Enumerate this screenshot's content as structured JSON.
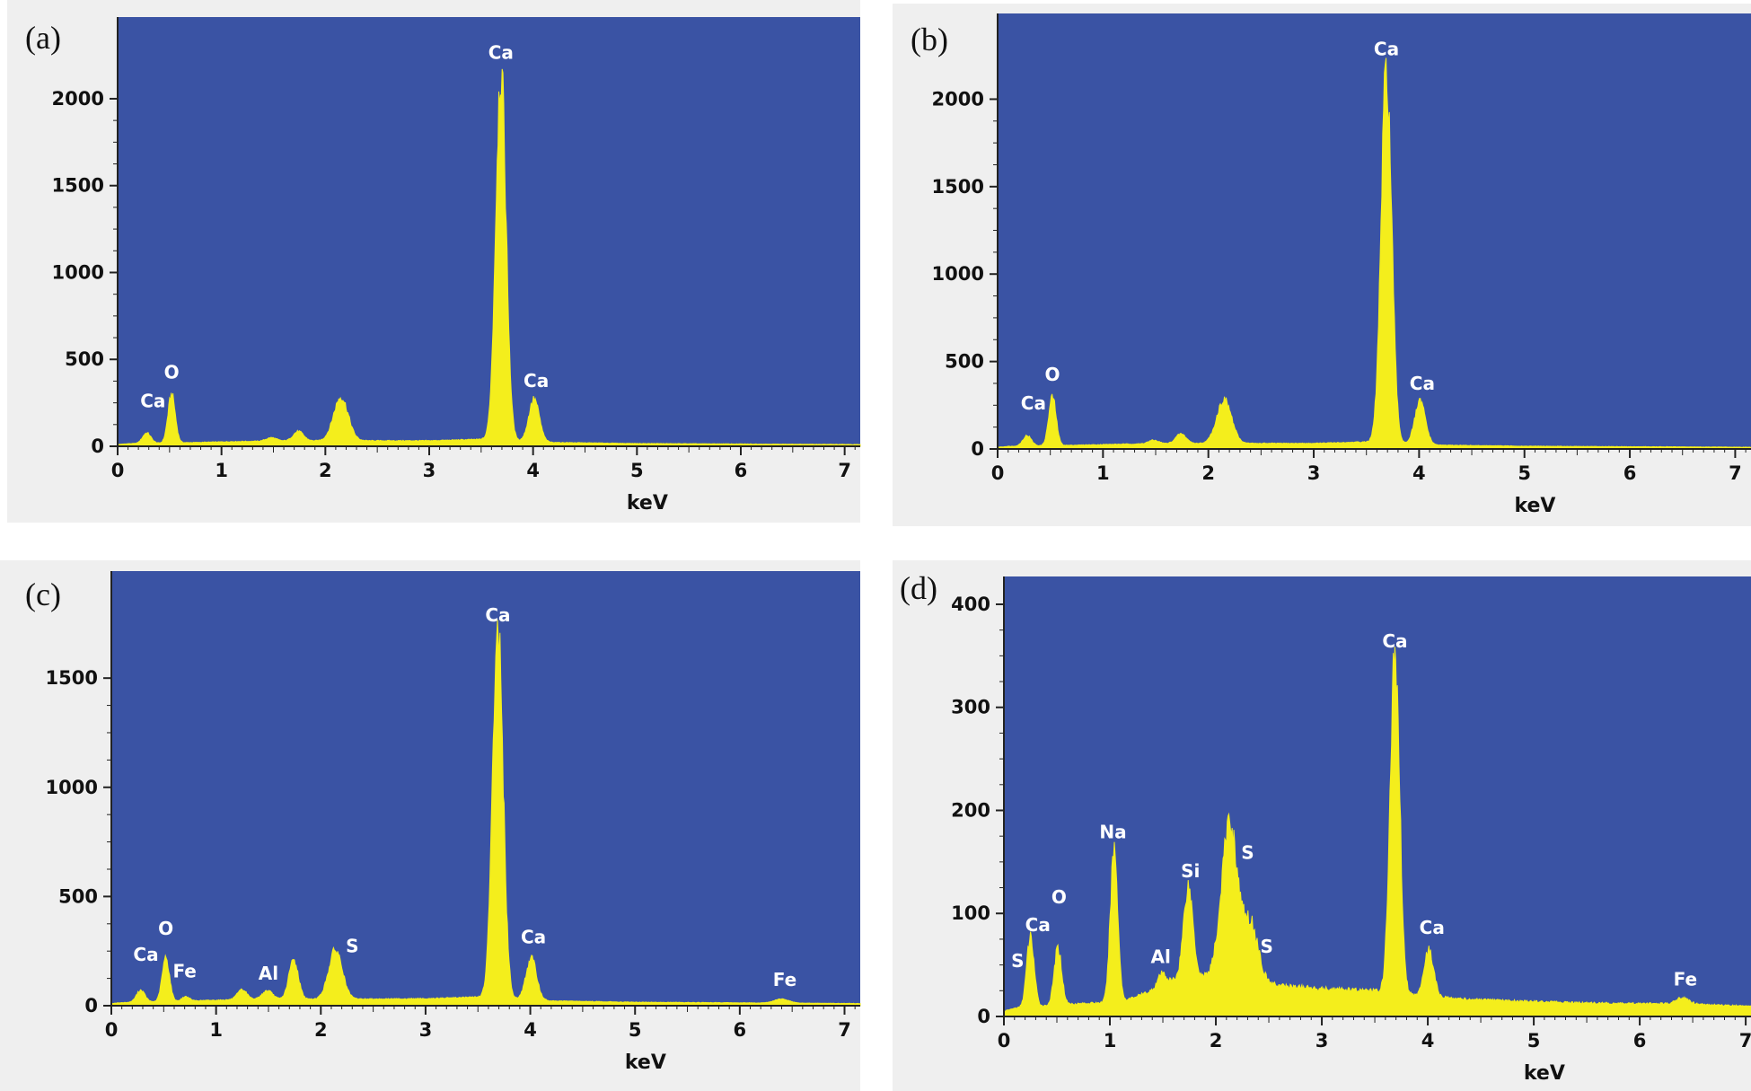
{
  "colors": {
    "background": "#efefef",
    "plot_area": "#3a53a4",
    "spectrum": "#f4ee1c",
    "label": "#ffffff"
  },
  "chart_data": [
    {
      "type": "area",
      "panel_label": "(a)",
      "xlabel": "keV",
      "xlim": [
        0,
        7.15
      ],
      "ylim": [
        0,
        2470
      ],
      "x_ticks": [
        0,
        1,
        2,
        3,
        4,
        5,
        6,
        7
      ],
      "y_ticks": [
        0,
        500,
        1000,
        1500,
        2000
      ],
      "baseline": [
        [
          0,
          10
        ],
        [
          0.1,
          15
        ],
        [
          0.6,
          20
        ],
        [
          1.2,
          28
        ],
        [
          2.0,
          32
        ],
        [
          3.0,
          32
        ],
        [
          3.5,
          40
        ],
        [
          4.2,
          22
        ],
        [
          5.0,
          16
        ],
        [
          7.15,
          10
        ]
      ],
      "peaks": [
        {
          "x": 0.28,
          "height": 60,
          "width": 0.04
        },
        {
          "x": 0.52,
          "height": 280,
          "width": 0.035
        },
        {
          "x": 1.48,
          "height": 20,
          "width": 0.05
        },
        {
          "x": 1.74,
          "height": 55,
          "width": 0.05
        },
        {
          "x": 2.15,
          "height": 250,
          "width": 0.07
        },
        {
          "x": 3.69,
          "height": 2120,
          "width": 0.05
        },
        {
          "x": 4.01,
          "height": 245,
          "width": 0.05
        }
      ],
      "annotations": [
        {
          "text": "Ca",
          "x": 0.34,
          "y": 225
        },
        {
          "text": "O",
          "x": 0.52,
          "y": 390
        },
        {
          "text": "Ca",
          "x": 3.69,
          "y": 2230
        },
        {
          "text": "Ca",
          "x": 4.03,
          "y": 340
        }
      ]
    },
    {
      "type": "area",
      "panel_label": "(b)",
      "xlabel": "keV",
      "xlim": [
        0,
        7.15
      ],
      "ylim": [
        0,
        2490
      ],
      "x_ticks": [
        0,
        1,
        2,
        3,
        4,
        5,
        6,
        7
      ],
      "y_ticks": [
        0,
        500,
        1000,
        1500,
        2000
      ],
      "baseline": [
        [
          0,
          10
        ],
        [
          0.1,
          15
        ],
        [
          0.6,
          20
        ],
        [
          1.2,
          28
        ],
        [
          2.0,
          32
        ],
        [
          3.0,
          32
        ],
        [
          3.5,
          40
        ],
        [
          4.2,
          22
        ],
        [
          5.0,
          16
        ],
        [
          7.15,
          10
        ]
      ],
      "peaks": [
        {
          "x": 0.28,
          "height": 60,
          "width": 0.04
        },
        {
          "x": 0.52,
          "height": 280,
          "width": 0.035
        },
        {
          "x": 1.48,
          "height": 20,
          "width": 0.05
        },
        {
          "x": 1.74,
          "height": 55,
          "width": 0.05
        },
        {
          "x": 2.15,
          "height": 250,
          "width": 0.07
        },
        {
          "x": 3.69,
          "height": 2120,
          "width": 0.05
        },
        {
          "x": 4.01,
          "height": 245,
          "width": 0.05
        }
      ],
      "annotations": [
        {
          "text": "Ca",
          "x": 0.34,
          "y": 225
        },
        {
          "text": "O",
          "x": 0.52,
          "y": 390
        },
        {
          "text": "Ca",
          "x": 3.69,
          "y": 2250
        },
        {
          "text": "Ca",
          "x": 4.03,
          "y": 340
        }
      ]
    },
    {
      "type": "area",
      "panel_label": "(c)",
      "xlabel": "keV",
      "xlim": [
        0,
        7.15
      ],
      "ylim": [
        0,
        1990
      ],
      "x_ticks": [
        0,
        1,
        2,
        3,
        4,
        5,
        6,
        7
      ],
      "y_ticks": [
        0,
        500,
        1000,
        1500
      ],
      "baseline": [
        [
          0,
          10
        ],
        [
          0.1,
          14
        ],
        [
          0.6,
          20
        ],
        [
          1.2,
          28
        ],
        [
          2.0,
          30
        ],
        [
          3.0,
          32
        ],
        [
          3.5,
          40
        ],
        [
          4.2,
          22
        ],
        [
          5.0,
          16
        ],
        [
          7.15,
          10
        ]
      ],
      "peaks": [
        {
          "x": 0.28,
          "height": 55,
          "width": 0.04
        },
        {
          "x": 0.52,
          "height": 200,
          "width": 0.035
        },
        {
          "x": 0.71,
          "height": 20,
          "width": 0.035
        },
        {
          "x": 1.25,
          "height": 45,
          "width": 0.045
        },
        {
          "x": 1.49,
          "height": 40,
          "width": 0.05
        },
        {
          "x": 1.74,
          "height": 180,
          "width": 0.045
        },
        {
          "x": 2.14,
          "height": 225,
          "width": 0.065
        },
        {
          "x": 3.69,
          "height": 1700,
          "width": 0.05
        },
        {
          "x": 4.01,
          "height": 190,
          "width": 0.05
        },
        {
          "x": 6.4,
          "height": 18,
          "width": 0.07
        }
      ],
      "annotations": [
        {
          "text": "Ca",
          "x": 0.33,
          "y": 205
        },
        {
          "text": "O",
          "x": 0.52,
          "y": 325
        },
        {
          "text": "Fe",
          "x": 0.7,
          "y": 130
        },
        {
          "text": "Al",
          "x": 1.5,
          "y": 120
        },
        {
          "text": "S",
          "x": 2.3,
          "y": 245
        },
        {
          "text": "Ca",
          "x": 3.69,
          "y": 1760
        },
        {
          "text": "Ca",
          "x": 4.03,
          "y": 285
        },
        {
          "text": "Fe",
          "x": 6.43,
          "y": 90
        }
      ]
    },
    {
      "type": "area",
      "panel_label": "(d)",
      "xlabel": "keV",
      "xlim": [
        0,
        7.05
      ],
      "ylim": [
        0,
        427
      ],
      "x_ticks": [
        0,
        1,
        2,
        3,
        4,
        5,
        6,
        7
      ],
      "y_ticks": [
        0,
        100,
        200,
        300,
        400
      ],
      "baseline": [
        [
          0,
          5
        ],
        [
          0.1,
          8
        ],
        [
          0.6,
          12
        ],
        [
          1.1,
          14
        ],
        [
          1.4,
          25
        ],
        [
          1.6,
          35
        ],
        [
          2.0,
          40
        ],
        [
          2.6,
          30
        ],
        [
          3.0,
          27
        ],
        [
          3.5,
          25
        ],
        [
          3.9,
          20
        ],
        [
          4.5,
          16
        ],
        [
          5.5,
          13
        ],
        [
          6.5,
          12
        ],
        [
          7.05,
          10
        ]
      ],
      "peaks": [
        {
          "x": 0.25,
          "height": 68,
          "width": 0.035
        },
        {
          "x": 0.51,
          "height": 55,
          "width": 0.035
        },
        {
          "x": 1.04,
          "height": 150,
          "width": 0.035
        },
        {
          "x": 1.49,
          "height": 12,
          "width": 0.04
        },
        {
          "x": 1.74,
          "height": 90,
          "width": 0.045
        },
        {
          "x": 2.13,
          "height": 150,
          "width": 0.075
        },
        {
          "x": 2.33,
          "height": 55,
          "width": 0.07
        },
        {
          "x": 3.69,
          "height": 325,
          "width": 0.045
        },
        {
          "x": 4.01,
          "height": 45,
          "width": 0.045
        },
        {
          "x": 6.4,
          "height": 6,
          "width": 0.06
        }
      ],
      "annotations": [
        {
          "text": "S",
          "x": 0.13,
          "y": 48
        },
        {
          "text": "Ca",
          "x": 0.32,
          "y": 83
        },
        {
          "text": "O",
          "x": 0.52,
          "y": 110
        },
        {
          "text": "Na",
          "x": 1.03,
          "y": 173
        },
        {
          "text": "Al",
          "x": 1.48,
          "y": 52
        },
        {
          "text": "Si",
          "x": 1.76,
          "y": 135
        },
        {
          "text": "S",
          "x": 2.3,
          "y": 153
        },
        {
          "text": "S",
          "x": 2.48,
          "y": 62
        },
        {
          "text": "Ca",
          "x": 3.69,
          "y": 358
        },
        {
          "text": "Ca",
          "x": 4.04,
          "y": 80
        },
        {
          "text": "Fe",
          "x": 6.43,
          "y": 30
        }
      ]
    }
  ]
}
